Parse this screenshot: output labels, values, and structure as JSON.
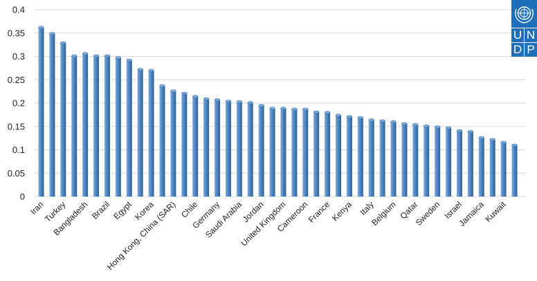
{
  "logo": {
    "name": "UNDP",
    "letters": [
      "U",
      "N",
      "D",
      "P"
    ],
    "color": "#1e6fb8"
  },
  "colors": {
    "bar": "#4f88c6",
    "bar_dark": "#2f5f93",
    "bar_light": "#7cabdd",
    "grid": "#d9d9d9"
  },
  "chart_data": {
    "type": "bar",
    "ylim": [
      0,
      0.4
    ],
    "yticks": [
      "0",
      "0.05",
      "0.1",
      "0.15",
      "0.2",
      "0.25",
      "0.3",
      "0.35",
      "0.4"
    ],
    "grid": true,
    "categories": [
      "Iran",
      "",
      "Turkey",
      "",
      "Bangladesh",
      "",
      "Brazil",
      "",
      "Egypt",
      "",
      "Korea",
      "",
      "Hong Kong, China (SAR)",
      "",
      "Chile",
      "",
      "Germany",
      "",
      "Saudi Arabia",
      "",
      "Jordan",
      "",
      "United Kingdom",
      "",
      "Cameroon",
      "",
      "France",
      "",
      "Kenya",
      "",
      "Italy",
      "",
      "Belgium",
      "",
      "Qatar",
      "",
      "Sweden",
      "",
      "Israel",
      "",
      "Jamaica",
      "",
      "Kuwait",
      ""
    ],
    "values": [
      0.362,
      0.349,
      0.329,
      0.301,
      0.306,
      0.301,
      0.301,
      0.297,
      0.292,
      0.272,
      0.27,
      0.237,
      0.226,
      0.221,
      0.214,
      0.209,
      0.207,
      0.204,
      0.203,
      0.201,
      0.195,
      0.189,
      0.189,
      0.187,
      0.187,
      0.181,
      0.18,
      0.174,
      0.171,
      0.169,
      0.164,
      0.162,
      0.16,
      0.156,
      0.154,
      0.151,
      0.149,
      0.147,
      0.141,
      0.139,
      0.126,
      0.122,
      0.116,
      0.11
    ],
    "title": "",
    "xlabel": "",
    "ylabel": ""
  }
}
